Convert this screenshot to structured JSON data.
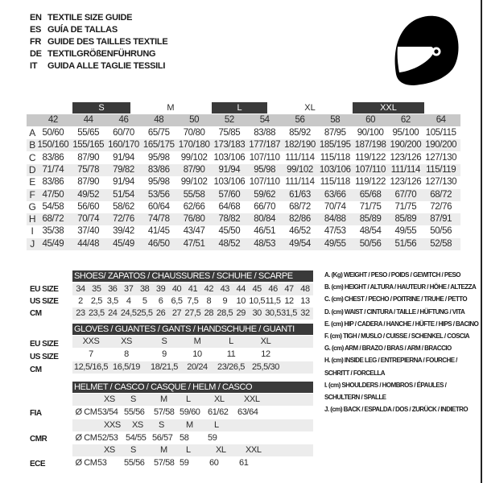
{
  "titles": [
    {
      "code": "EN",
      "text": "TEXTILE SIZE GUIDE"
    },
    {
      "code": "ES",
      "text": "GUÍA DE TALLAS"
    },
    {
      "code": "FR",
      "text": "GUIDE DES TAILLES TEXTILE"
    },
    {
      "code": "DE",
      "text": "TEXTILGRÖßENFÜHRUNG"
    },
    {
      "code": "IT",
      "text": "GUIDA ALLE TAGLIE TESSILI"
    }
  ],
  "icon": "helmet-icon",
  "textile": {
    "size_bands": [
      "S",
      "M",
      "L",
      "XL",
      "XXL"
    ],
    "sizes": [
      "42",
      "44",
      "46",
      "48",
      "50",
      "52",
      "54",
      "56",
      "58",
      "60",
      "62",
      "64"
    ],
    "rows": [
      {
        "key": "A",
        "values": [
          "50/60",
          "55/65",
          "60/70",
          "65/75",
          "70/80",
          "75/85",
          "83/88",
          "85/92",
          "87/95",
          "90/100",
          "95/100",
          "105/115"
        ]
      },
      {
        "key": "B",
        "values": [
          "150/160",
          "155/165",
          "160/170",
          "165/175",
          "170/180",
          "173/183",
          "177/187",
          "182/190",
          "185/195",
          "187/198",
          "190/200",
          "190/200"
        ]
      },
      {
        "key": "C",
        "values": [
          "83/86",
          "87/90",
          "91/94",
          "95/98",
          "99/102",
          "103/106",
          "107/110",
          "111/114",
          "115/118",
          "119/122",
          "123/126",
          "127/130"
        ]
      },
      {
        "key": "D",
        "values": [
          "71/74",
          "75/78",
          "79/82",
          "83/86",
          "87/90",
          "91/94",
          "95/98",
          "99/102",
          "103/106",
          "107/110",
          "111/114",
          "115/119"
        ]
      },
      {
        "key": "E",
        "values": [
          "83/86",
          "87/90",
          "91/94",
          "95/98",
          "99/102",
          "103/106",
          "107/110",
          "111/114",
          "115/118",
          "119/122",
          "123/126",
          "127/130"
        ]
      },
      {
        "key": "F",
        "values": [
          "47/50",
          "49/52",
          "51/54",
          "53/56",
          "55/58",
          "57/60",
          "59/62",
          "61/63",
          "63/66",
          "65/68",
          "67/70",
          "68/72"
        ]
      },
      {
        "key": "G",
        "values": [
          "54/58",
          "56/60",
          "58/62",
          "60/64",
          "62/66",
          "64/68",
          "66/70",
          "68/72",
          "70/74",
          "71/75",
          "71/75",
          "72/76"
        ]
      },
      {
        "key": "H",
        "values": [
          "68/72",
          "70/74",
          "72/76",
          "74/78",
          "76/80",
          "78/82",
          "80/84",
          "82/86",
          "84/88",
          "85/89",
          "85/89",
          "87/91"
        ]
      },
      {
        "key": "I",
        "values": [
          "35/38",
          "37/40",
          "39/42",
          "41/45",
          "43/47",
          "45/50",
          "46/51",
          "46/52",
          "47/53",
          "48/54",
          "49/55",
          "50/56"
        ]
      },
      {
        "key": "J",
        "values": [
          "45/49",
          "44/48",
          "45/49",
          "46/50",
          "47/51",
          "48/52",
          "48/53",
          "49/54",
          "49/55",
          "50/56",
          "51/56",
          "52/58"
        ]
      }
    ]
  },
  "shoes": {
    "title": "SHOES/ ZAPATOS / CHAUSSURES / SCHUHE / SCARPE",
    "rows": [
      {
        "label": "EU SIZE",
        "values": [
          "34",
          "35",
          "36",
          "37",
          "38",
          "39",
          "40",
          "41",
          "42",
          "43",
          "44",
          "45",
          "46",
          "47",
          "48"
        ]
      },
      {
        "label": "US SIZE",
        "values": [
          "2",
          "2,5",
          "3,5",
          "4",
          "5",
          "6",
          "6,5",
          "7,5",
          "8",
          "9",
          "10",
          "10,5",
          "11,5",
          "12",
          "13"
        ]
      },
      {
        "label": "CM",
        "values": [
          "23",
          "23,5",
          "24",
          "24,5",
          "25,5",
          "26",
          "27",
          "27,5",
          "28",
          "28,5",
          "29",
          "30",
          "30,5",
          "31,5",
          "32"
        ]
      }
    ]
  },
  "gloves": {
    "title": "GLOVES / GUANTES / GANTS / HANDSCHUHE / GUANTI",
    "rows": [
      {
        "label": "EU SIZE",
        "values": [
          "XXS",
          "XS",
          "S",
          "M",
          "L",
          "XL"
        ]
      },
      {
        "label": "US SIZE",
        "values": [
          "7",
          "8",
          "9",
          "10",
          "11",
          "12"
        ]
      },
      {
        "label": "CM",
        "values": [
          "12,5/16,5",
          "16,5/19",
          "18/21,5",
          "20/24",
          "23/26,5",
          "25,5/30"
        ]
      }
    ]
  },
  "helmet": {
    "title": "HELMET / CASCO / CASQUE / HELM / CASCO",
    "groups": [
      {
        "label": "FIA",
        "unit": "Ø CM",
        "sizes": [
          "XS",
          "S",
          "M",
          "L",
          "XL",
          "XXL"
        ],
        "values": [
          "53/54",
          "55/56",
          "57/58",
          "59/60",
          "61/62",
          "63/64"
        ]
      },
      {
        "label": "CMR",
        "unit": "Ø CM",
        "sizes": [
          "XXS",
          "XS",
          "S",
          "M",
          "L"
        ],
        "values": [
          "52/53",
          "54/55",
          "56/57",
          "58",
          "59"
        ]
      },
      {
        "label": "ECE",
        "unit": "Ø CM",
        "sizes": [
          "XS",
          "S",
          "M",
          "L",
          "XL",
          "XXL"
        ],
        "values": [
          "53",
          "55/56",
          "57/58",
          "59",
          "60",
          "61"
        ]
      }
    ]
  },
  "legend": [
    "A. (Kg) WEIGHT / PESO / POIDS / GEWITCH / PESO",
    "B. (cm) HEIGHT / ALTURA / HAUTEUR / HÖHE / ALTEZZA",
    "C. (cm) CHEST / PECHO / POITRINE / TRUHE / PETTO",
    "D. (cm) WAIST / CINTURA / TAILLE / HÜFTUNG / VITA",
    "E. (cm) HIP / CADERA / HANCHE / HÜFTE / HIPS /  BACINO",
    "F.  (cm) TIGH / MUSLO / CUISSE / SCHENKEL / COSCIA",
    "G. (cm) ARM  / BRAZO / BRAS / ARM / BRACCIO",
    "H. (cm) INSIDE LEG / ENTREPIERNA / FOURCHE /",
    "SCHRITT / FORCELLA",
    "I.  (cm) SHOULDERS / HOMBROS / ÉPAULES /",
    "SCHULTERN / SPALLE",
    "J. (cm) BACK / ESPALDA / DOS / ZURÜCK / INDIETRO"
  ]
}
